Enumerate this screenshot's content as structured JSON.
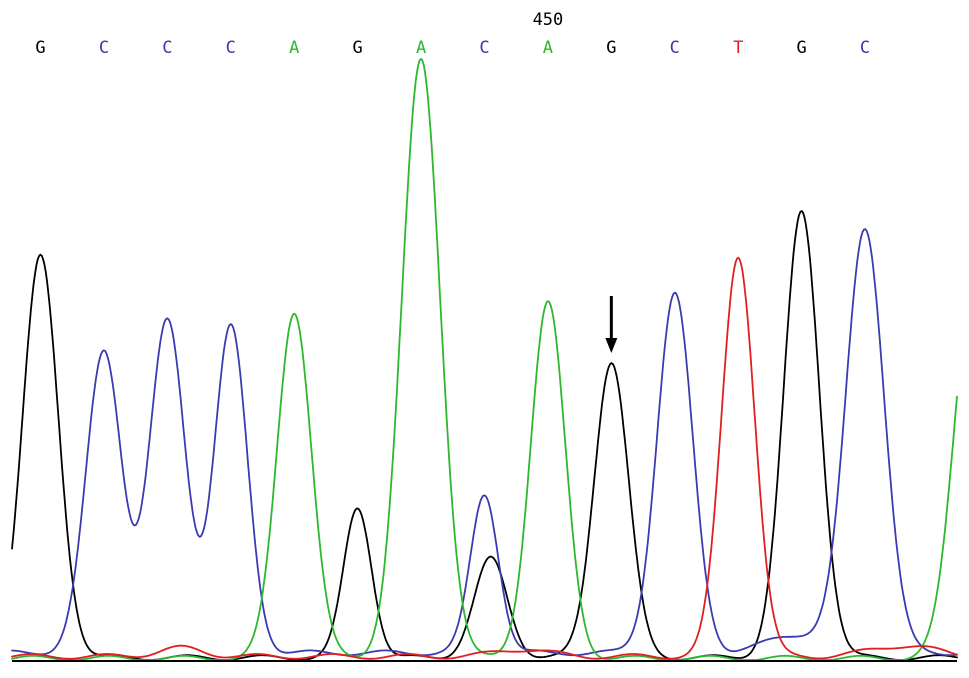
{
  "chart_data": {
    "type": "line",
    "position_label": "450",
    "position_label_base_index": 8,
    "base_calls": [
      {
        "base": "G",
        "x": 0
      },
      {
        "base": "C",
        "x": 1
      },
      {
        "base": "C",
        "x": 2
      },
      {
        "base": "C",
        "x": 3
      },
      {
        "base": "A",
        "x": 4
      },
      {
        "base": "G",
        "x": 5
      },
      {
        "base": "A",
        "x": 6
      },
      {
        "base": "C",
        "x": 7
      },
      {
        "base": "A",
        "x": 8
      },
      {
        "base": "G",
        "x": 9
      },
      {
        "base": "C",
        "x": 10
      },
      {
        "base": "T",
        "x": 11
      },
      {
        "base": "G",
        "x": 12
      },
      {
        "base": "C",
        "x": 13
      }
    ],
    "base_colors": {
      "A": "#2db82d",
      "C": "#3b3bb0",
      "G": "#000000",
      "T": "#e02020"
    },
    "marker": {
      "type": "arrow",
      "base_index": 9
    },
    "x_range": [
      -0.45,
      14.45
    ],
    "y_range": [
      0,
      1000
    ],
    "series": [
      {
        "channel": "G",
        "color": "#000000",
        "peaks": [
          {
            "x": 0,
            "height": 670,
            "width": 0.28
          },
          {
            "x": 5,
            "height": 250,
            "width": 0.22
          },
          {
            "x": 7.1,
            "height": 165,
            "width": 0.26
          },
          {
            "x": 9,
            "height": 495,
            "width": 0.27
          },
          {
            "x": 12,
            "height": 745,
            "width": 0.28
          }
        ],
        "baseline": 4
      },
      {
        "channel": "C",
        "color": "#3b3bb0",
        "peaks": [
          {
            "x": 1,
            "height": 505,
            "width": 0.28
          },
          {
            "x": 2,
            "height": 555,
            "width": 0.28
          },
          {
            "x": 3,
            "height": 545,
            "width": 0.26
          },
          {
            "x": 7,
            "height": 265,
            "width": 0.22
          },
          {
            "x": 10,
            "height": 600,
            "width": 0.28
          },
          {
            "x": 13,
            "height": 710,
            "width": 0.3
          },
          {
            "x": 11.9,
            "height": 30,
            "width": 0.45
          }
        ],
        "baseline": 12
      },
      {
        "channel": "A",
        "color": "#2db82d",
        "peaks": [
          {
            "x": 4,
            "height": 580,
            "width": 0.27
          },
          {
            "x": 6,
            "height": 1000,
            "width": 0.3
          },
          {
            "x": 8,
            "height": 595,
            "width": 0.27
          },
          {
            "x": 14.7,
            "height": 620,
            "width": 0.3
          }
        ],
        "baseline": 3
      },
      {
        "channel": "T",
        "color": "#e02020",
        "peaks": [
          {
            "x": 11,
            "height": 670,
            "width": 0.26
          },
          {
            "x": 2.2,
            "height": 14,
            "width": 0.35
          },
          {
            "x": 7.6,
            "height": 12,
            "width": 0.4
          },
          {
            "x": 13.6,
            "height": 18,
            "width": 0.5
          }
        ],
        "baseline": 6
      }
    ]
  }
}
